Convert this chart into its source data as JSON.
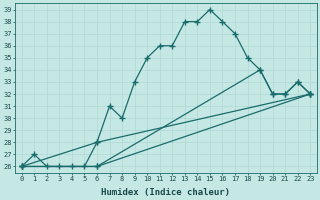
{
  "xlabel": "Humidex (Indice chaleur)",
  "ylabel": "",
  "xlim": [
    -0.5,
    23.5
  ],
  "ylim": [
    25.5,
    39.5
  ],
  "bg_color": "#c5e8e5",
  "line_color": "#1a6b6b",
  "grid_color": "#b0d8d5",
  "line_width": 0.9,
  "marker": "+",
  "markersize": 4,
  "markeredgewidth": 1.0,
  "tick_fontsize": 5.0,
  "xlabel_fontsize": 6.5,
  "lines": [
    {
      "x": [
        0,
        1,
        2,
        3,
        4,
        5,
        6,
        7,
        8,
        9,
        10,
        11,
        12,
        13,
        14,
        15,
        16,
        17,
        18,
        19,
        20,
        21,
        22,
        23
      ],
      "y": [
        26,
        27,
        26,
        26,
        26,
        26,
        28,
        31,
        30,
        33,
        35,
        36,
        36,
        38,
        38,
        39,
        38,
        37,
        35,
        34,
        32,
        32,
        33,
        32
      ]
    },
    {
      "x": [
        0,
        6,
        19,
        20,
        21,
        22,
        23
      ],
      "y": [
        26,
        26,
        34,
        32,
        32,
        33,
        32
      ]
    },
    {
      "x": [
        0,
        6,
        23
      ],
      "y": [
        26,
        28,
        32
      ]
    },
    {
      "x": [
        0,
        6,
        23
      ],
      "y": [
        26,
        26,
        32
      ]
    }
  ]
}
